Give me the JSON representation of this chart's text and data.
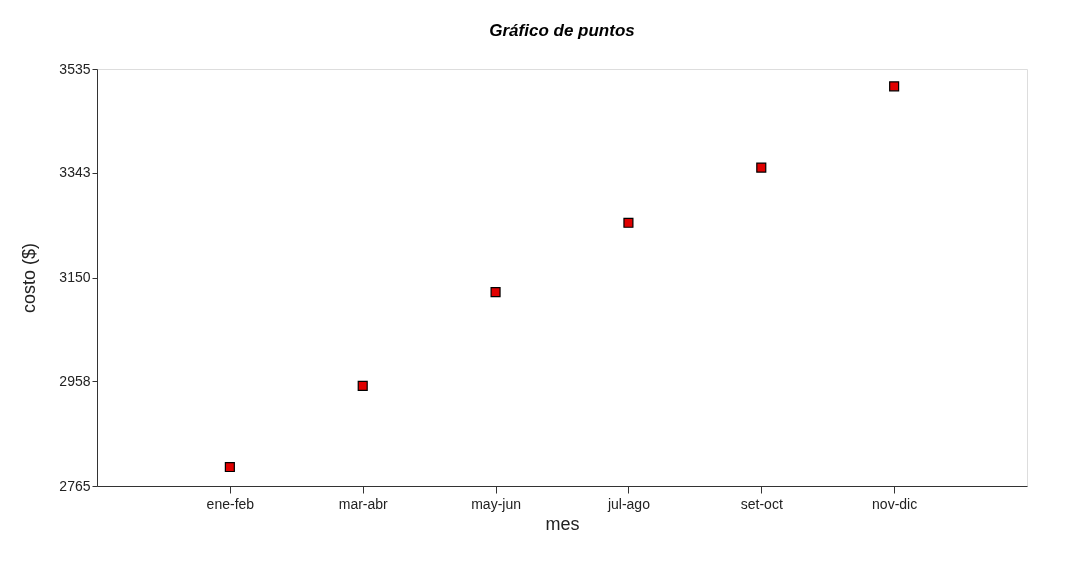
{
  "chart_data": {
    "type": "scatter",
    "title": "Gráfico de puntos",
    "xlabel": "mes",
    "ylabel": "costo ($)",
    "categories": [
      "ene-feb",
      "mar-abr",
      "may-jun",
      "jul-ago",
      "set-oct",
      "nov-dic"
    ],
    "series": [
      {
        "color": "#e00000",
        "values": [
          2800,
          2950,
          3123,
          3251,
          3353,
          3503
        ]
      }
    ],
    "ylim": [
      2765,
      3535
    ],
    "yticks": [
      2765,
      2958,
      3150,
      3343,
      3535
    ],
    "grid": false,
    "marker": "square"
  }
}
